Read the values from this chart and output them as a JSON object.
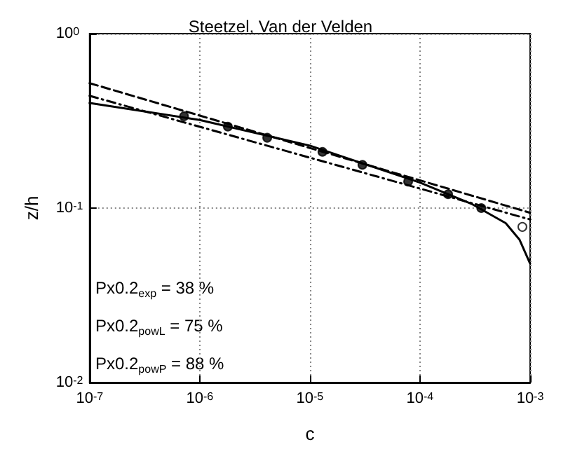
{
  "chart_data": {
    "type": "line",
    "title": "Steetzel, Van der Velden",
    "xlabel": "c",
    "ylabel": "z/h",
    "log": "xy",
    "grid": true,
    "xlim": [
      1e-07,
      0.001
    ],
    "ylim": [
      0.01,
      1
    ],
    "xticks": [
      {
        "value": 1e-07,
        "label": "10$^{-7}$"
      },
      {
        "value": 1e-06,
        "label": "10$^{-6}$"
      },
      {
        "value": 1e-05,
        "label": "10$^{-5}$"
      },
      {
        "value": 0.0001,
        "label": "10$^{-4}$"
      },
      {
        "value": 0.001,
        "label": "10$^{-3}$"
      }
    ],
    "yticks": [
      {
        "value": 0.01,
        "label": "10$^{-2}$"
      },
      {
        "value": 0.1,
        "label": "10$^{-1}$"
      },
      {
        "value": 1,
        "label": "10$^{0}$"
      }
    ],
    "series": [
      {
        "type": "line",
        "color": "#000000",
        "line_style": "solid",
        "x": [
          1e-07,
          1e-06,
          1e-05,
          0.0001,
          0.0003,
          0.0006,
          0.0008,
          0.001
        ],
        "values": [
          0.4,
          0.32,
          0.228,
          0.14,
          0.105,
          0.082,
          0.066,
          0.048
        ]
      },
      {
        "type": "line",
        "color": "#000000",
        "line_style": "dashed",
        "x": [
          1e-07,
          0.001
        ],
        "values": [
          0.52,
          0.094
        ]
      },
      {
        "type": "line",
        "color": "#000000",
        "line_style": "dashdot",
        "x": [
          1e-07,
          0.001
        ],
        "values": [
          0.44,
          0.086
        ]
      },
      {
        "type": "scatter",
        "color": "#000000",
        "marker": "circle",
        "x": [
          7.2e-07,
          1.8e-06,
          4.1e-06,
          1.3e-05,
          3e-05,
          7.8e-05,
          0.00018,
          0.00036
        ],
        "values": [
          0.336,
          0.293,
          0.253,
          0.21,
          0.177,
          0.142,
          0.12,
          0.1
        ]
      },
      {
        "type": "scatter",
        "color": "#ffffff",
        "marker": "circle",
        "x": [
          0.00085
        ],
        "values": [
          0.078
        ]
      }
    ],
    "annotations": [
      "Px0.2$_{exp}$ = 38 %",
      "Px0.2$_{powL}$ = 75 %",
      "Px0.2$_{powP}$ = 88 %"
    ]
  }
}
